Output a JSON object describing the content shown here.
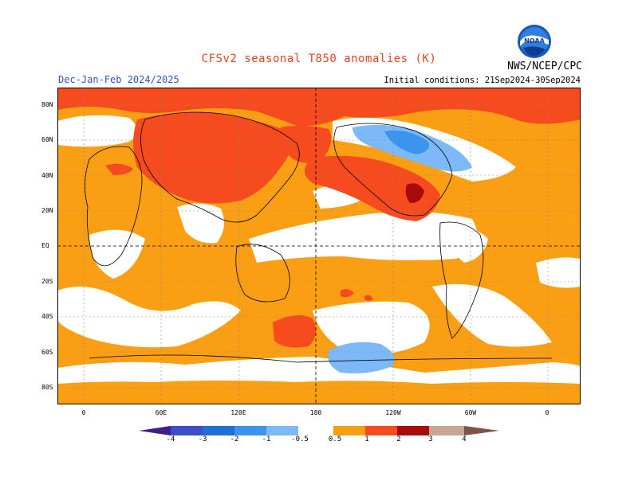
{
  "header": {
    "title": "CFSv2 seasonal T850 anomalies (K)",
    "season": "Dec-Jan-Feb 2024/2025",
    "initial_conditions": "Initial conditions: 21Sep2024-30Sep2024",
    "agency": "NWS/NCEP/CPC",
    "logo_text": "NOAA"
  },
  "map": {
    "projection": "cylindrical",
    "lat_labels": [
      "80N",
      "60N",
      "40N",
      "20N",
      "EQ",
      "20S",
      "40S",
      "60S",
      "80S"
    ],
    "lon_labels": [
      "0",
      "60E",
      "120E",
      "180",
      "120W",
      "60W",
      "0"
    ]
  },
  "legend": {
    "labels": [
      "-4",
      "-3",
      "-2",
      "-1",
      "-0.5",
      "0.5",
      "1",
      "2",
      "3",
      "4"
    ],
    "colors": {
      "lt_-4": "#3d1e8c",
      "-4_-3": "#3c4fc8",
      "-3_-2": "#1f6fd6",
      "-2_-1": "#3a94ee",
      "-1_-0.5": "#7db9f7",
      "-0.5_0.5": "#ffffff",
      "0.5_1": "#fa9e13",
      "1_2": "#f64a1f",
      "2_3": "#a80b0b",
      "3_4": "#c9a596",
      "gt_4": "#7f5448"
    }
  },
  "colors": {
    "title": "#e8431e",
    "subtitle": "#2e55c7"
  }
}
